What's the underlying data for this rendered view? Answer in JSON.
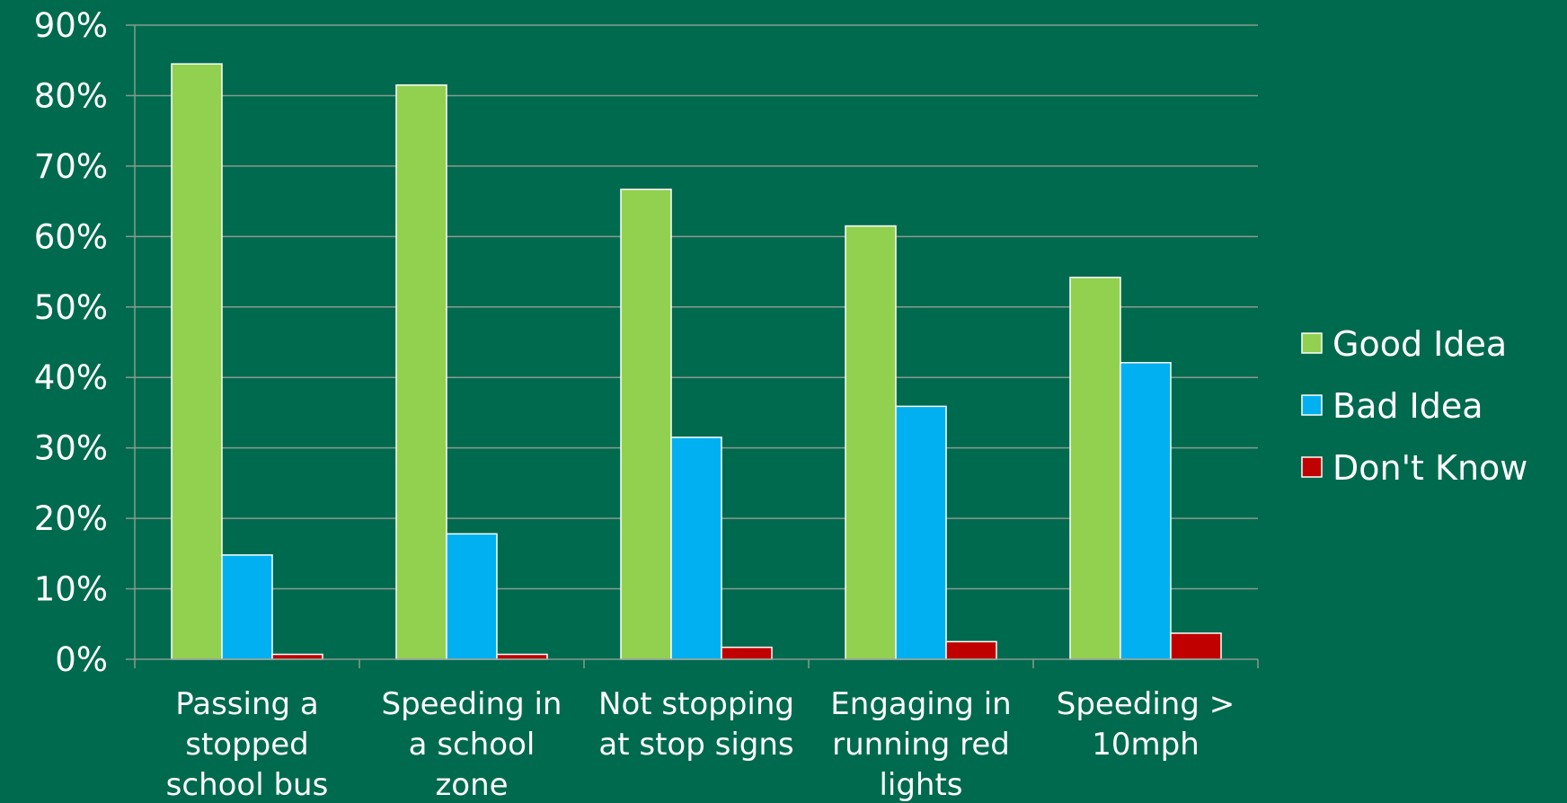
{
  "chart_data": {
    "type": "bar",
    "title": "",
    "xlabel": "",
    "ylabel": "",
    "ylim": [
      0,
      90
    ],
    "yticks": [
      "0%",
      "10%",
      "20%",
      "30%",
      "40%",
      "50%",
      "60%",
      "70%",
      "80%",
      "90%"
    ],
    "grid": true,
    "legend_position": "right",
    "categories": [
      [
        "Passing a",
        "stopped",
        "school bus"
      ],
      [
        "Speeding in",
        "a school",
        "zone"
      ],
      [
        "Not stopping",
        "at stop signs"
      ],
      [
        "Engaging in",
        "running red",
        "lights"
      ],
      [
        "Speeding >",
        "10mph"
      ]
    ],
    "series": [
      {
        "name": "Good Idea",
        "color": "#92d050",
        "values": [
          84.5,
          81.5,
          66.7,
          61.5,
          54.2
        ]
      },
      {
        "name": "Bad Idea",
        "color": "#00b0f0",
        "values": [
          14.8,
          17.8,
          31.5,
          35.9,
          42.1
        ]
      },
      {
        "name": "Don't Know",
        "color": "#c00000",
        "values": [
          0.7,
          0.7,
          1.7,
          2.5,
          3.7
        ]
      }
    ]
  }
}
